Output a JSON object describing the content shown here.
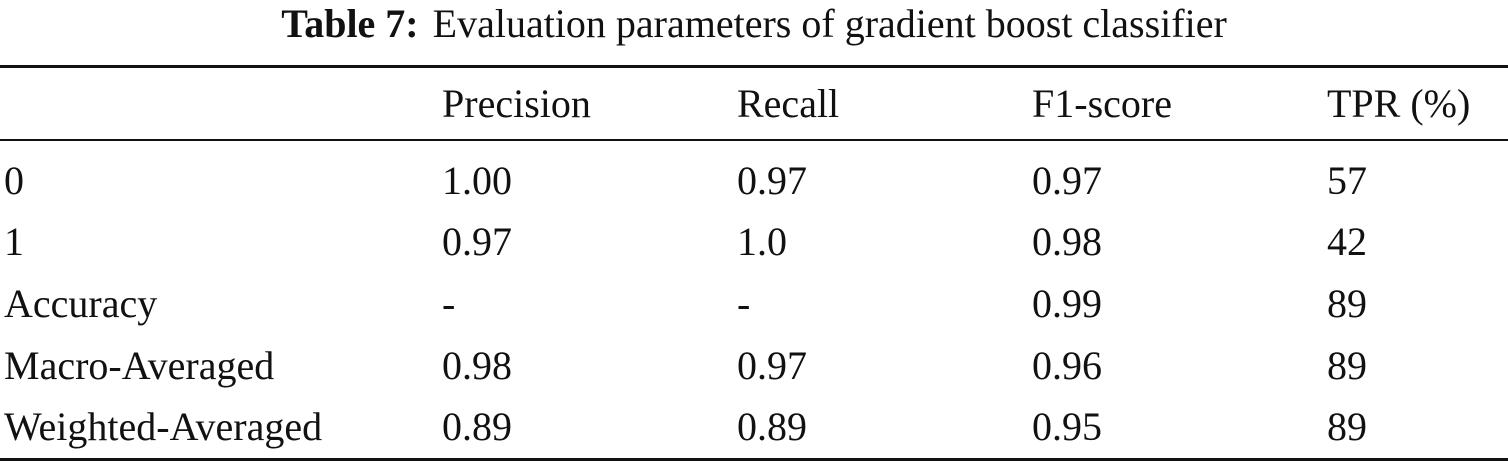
{
  "caption": {
    "label": "Table 7:",
    "text": "Evaluation parameters of gradient boost classifier"
  },
  "table": {
    "columns": [
      "Precision",
      "Recall",
      "F1-score",
      "TPR (%)"
    ],
    "rows": [
      [
        "0",
        "1.00",
        "0.97",
        "0.97",
        "57"
      ],
      [
        "1",
        "0.97",
        "1.0",
        "0.98",
        "42"
      ],
      [
        "Accuracy",
        "-",
        "-",
        "0.99",
        "89"
      ],
      [
        "Macro-Averaged",
        "0.98",
        "0.97",
        "0.96",
        "89"
      ],
      [
        "Weighted-Averaged",
        "0.89",
        "0.89",
        "0.95",
        "89"
      ]
    ]
  }
}
